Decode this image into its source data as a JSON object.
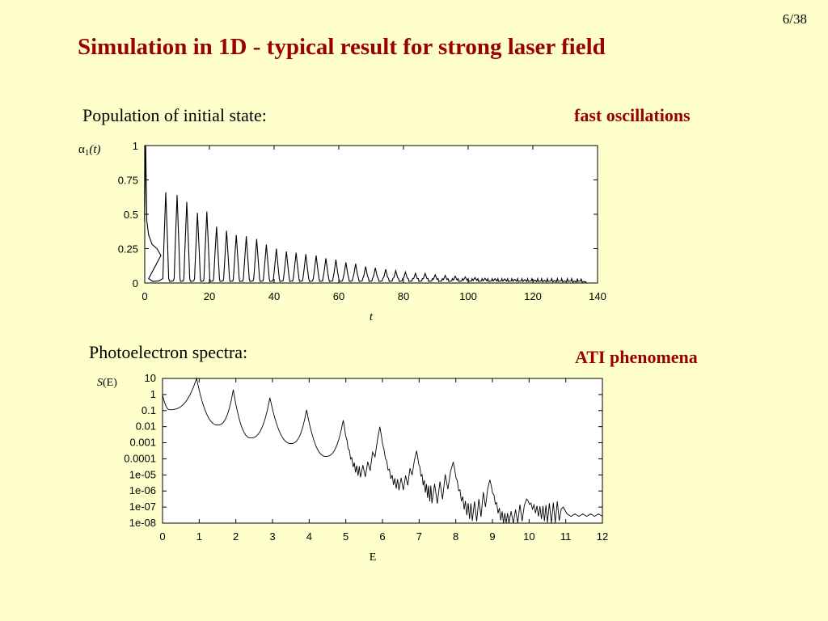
{
  "slide": {
    "page_number": "6/38",
    "title": "Simulation in 1D - typical result for strong laser field",
    "section1_label": "Population of initial state:",
    "section1_note": "fast oscillations",
    "section2_label": "Photoelectron spectra:",
    "section2_note": "ATI phenomena"
  },
  "chart_data": [
    {
      "type": "line",
      "ylabel_symbol": "α",
      "ylabel_subscript": "1",
      "ylabel_arg": "(t)",
      "xlabel": "t",
      "xlim": [
        0,
        140
      ],
      "ylim": [
        0,
        1
      ],
      "xticks": [
        0,
        20,
        40,
        60,
        80,
        100,
        120,
        140
      ],
      "yticks": [
        0,
        0.25,
        0.5,
        0.75,
        1
      ],
      "ytick_labels": [
        "0",
        "0.25",
        "0.5",
        "0.75",
        "1"
      ],
      "series": [
        {
          "peaks_x": [
            0.3,
            6.5,
            10.0,
            13.0,
            16.3,
            19.2,
            22.2,
            25.3,
            28.3,
            31.4,
            34.6,
            37.6,
            40.7,
            43.8,
            46.8,
            49.8,
            53.0,
            56.0,
            59.1,
            62.2,
            65.2,
            68.3,
            71.3,
            74.5,
            77.6,
            80.6,
            83.7,
            86.7,
            89.8,
            92.9,
            96.0,
            99.1,
            102.1,
            105.2,
            108.3,
            111.3,
            114.4,
            117.5,
            120.6,
            123.6,
            126.7,
            129.8,
            132.9,
            135.8
          ],
          "peaks_y": [
            1.0,
            0.66,
            0.64,
            0.59,
            0.51,
            0.52,
            0.41,
            0.38,
            0.35,
            0.34,
            0.32,
            0.28,
            0.25,
            0.23,
            0.22,
            0.21,
            0.2,
            0.18,
            0.17,
            0.15,
            0.14,
            0.12,
            0.11,
            0.1,
            0.09,
            0.08,
            0.07,
            0.07,
            0.06,
            0.055,
            0.05,
            0.045,
            0.04,
            0.035,
            0.032,
            0.03,
            0.027,
            0.025,
            0.022,
            0.02,
            0.018,
            0.016,
            0.014,
            0.012
          ]
        }
      ]
    },
    {
      "type": "line",
      "yscale": "log",
      "ylabel_symbol": "S",
      "ylabel_arg": "(E)",
      "xlabel": "E",
      "xlim": [
        0,
        12
      ],
      "ylim": [
        1e-08,
        10
      ],
      "xticks": [
        0,
        1,
        2,
        3,
        4,
        5,
        6,
        7,
        8,
        9,
        10,
        11,
        12
      ],
      "yticks_exp": [
        -8,
        -7,
        -6,
        -5,
        -4,
        -3,
        -2,
        -1,
        0,
        1
      ],
      "ytick_labels": [
        "1e-08",
        "1e-07",
        "1e-06",
        "1e-05",
        "0.0001",
        "0.001",
        "0.01",
        "0.1",
        "1",
        "10"
      ],
      "series": [
        {
          "peaks_E": [
            0.93,
            1.93,
            2.93,
            3.93,
            4.93,
            5.93,
            6.93,
            7.93,
            8.93,
            9.93,
            10.93
          ],
          "peaks_log10": [
            1.0,
            0.3,
            -0.2,
            -0.95,
            -1.6,
            -2.0,
            -3.5,
            -4.2,
            -5.3,
            -6.5,
            -7.0
          ],
          "valleys_E": [
            0.2,
            1.5,
            2.4,
            3.5,
            4.45,
            5.4,
            6.45,
            7.35,
            8.45,
            9.45,
            10.5
          ],
          "valleys_log10": [
            -0.95,
            -1.9,
            -2.7,
            -3.05,
            -3.85,
            -4.8,
            -5.6,
            -6.2,
            -7.3,
            -7.9,
            -7.4
          ],
          "start_log10": 0.0,
          "end_log10": -7.5
        }
      ]
    }
  ]
}
